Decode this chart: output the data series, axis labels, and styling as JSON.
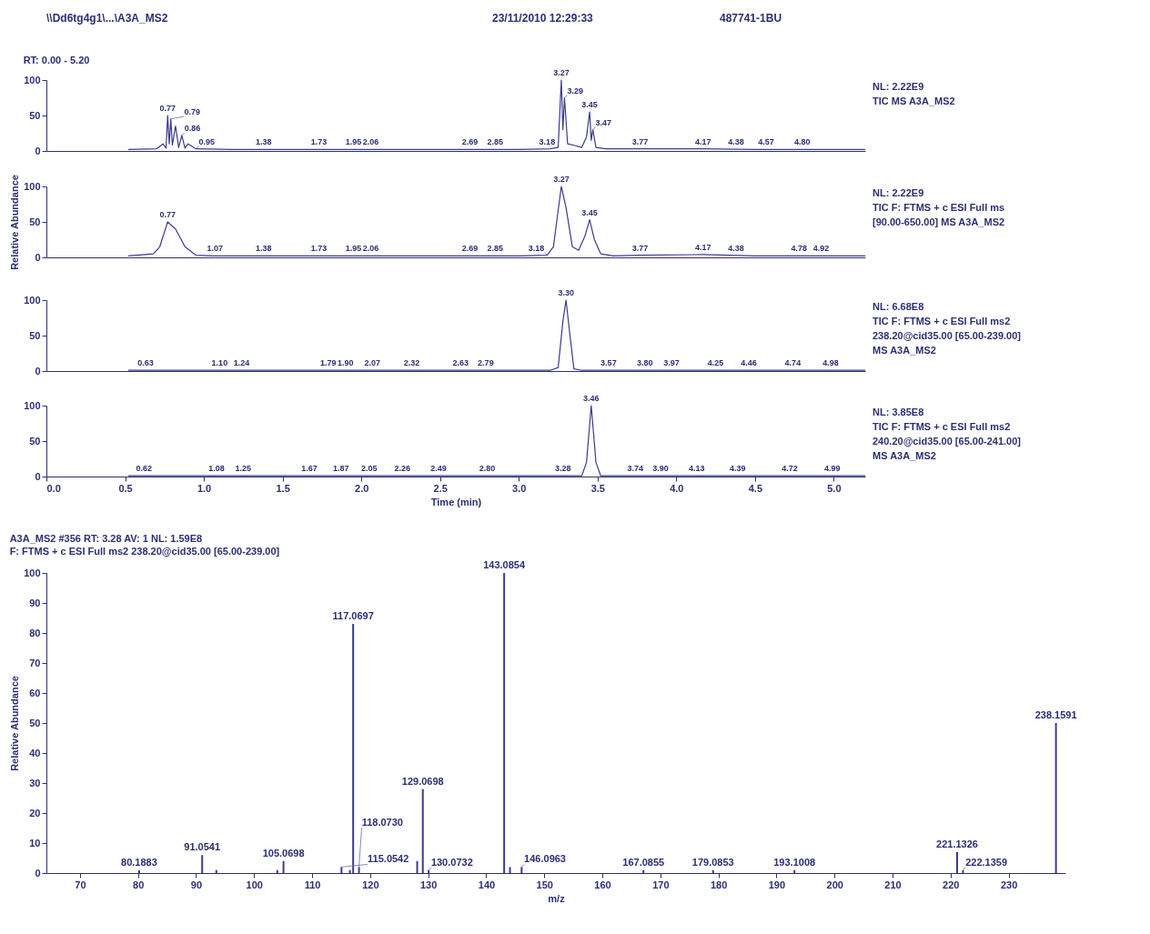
{
  "chart_data": [
    {
      "type": "other",
      "annotations": [
        "\\\\Dd6tg4g1\\...\\A3A_MS2",
        "23/11/2010 12:29:33",
        "487741-1BU"
      ]
    },
    {
      "type": "line",
      "title": "RT: 0.00 - 5.20",
      "color": "#3b3b8f",
      "xlim": [
        0,
        5.2
      ],
      "ylim": [
        0,
        100
      ],
      "yticks": [
        0,
        50,
        100
      ],
      "tick_labels": "y",
      "x": [
        0.52,
        0.7,
        0.74,
        0.76,
        0.77,
        0.78,
        0.79,
        0.8,
        0.82,
        0.84,
        0.86,
        0.88,
        0.9,
        0.95,
        1.2,
        1.5,
        2.0,
        2.5,
        3.0,
        3.2,
        3.25,
        3.27,
        3.28,
        3.29,
        3.31,
        3.35,
        3.4,
        3.43,
        3.45,
        3.46,
        3.47,
        3.49,
        3.55,
        3.77,
        4.17,
        4.5,
        5.2
      ],
      "values": [
        2,
        3,
        10,
        4,
        50,
        10,
        45,
        8,
        35,
        5,
        22,
        4,
        10,
        3,
        2,
        2,
        2,
        2,
        2,
        3,
        5,
        100,
        30,
        75,
        10,
        8,
        5,
        20,
        55,
        15,
        30,
        5,
        3,
        3,
        3,
        2,
        2
      ],
      "annotations": [
        "NL: 2.22E9",
        "TIC  MS A3A_MS2",
        {
          "text": "0.77",
          "x": 0.77,
          "y": 50
        },
        {
          "text": "0.79",
          "x": 0.79,
          "y": 45
        },
        {
          "text": "0.86",
          "x": 0.86,
          "y": 22
        },
        {
          "text": "0.95",
          "x": 0.95,
          "y": 3
        },
        {
          "text": "1.38",
          "x": 1.38,
          "y": 2
        },
        {
          "text": "1.73",
          "x": 1.73,
          "y": 2
        },
        {
          "text": "1.95",
          "x": 1.95,
          "y": 2
        },
        {
          "text": "2.06",
          "x": 2.06,
          "y": 2
        },
        {
          "text": "2.69",
          "x": 2.69,
          "y": 2
        },
        {
          "text": "2.85",
          "x": 2.85,
          "y": 2
        },
        {
          "text": "3.18",
          "x": 3.18,
          "y": 3
        },
        {
          "text": "3.27",
          "x": 3.27,
          "y": 100
        },
        {
          "text": "3.29",
          "x": 3.29,
          "y": 75
        },
        {
          "text": "3.45",
          "x": 3.45,
          "y": 55
        },
        {
          "text": "3.47",
          "x": 3.47,
          "y": 30
        },
        {
          "text": "3.77",
          "x": 3.77,
          "y": 3
        },
        {
          "text": "4.17",
          "x": 4.17,
          "y": 3
        },
        {
          "text": "4.38",
          "x": 4.38,
          "y": 2
        },
        {
          "text": "4.57",
          "x": 4.57,
          "y": 2
        },
        {
          "text": "4.80",
          "x": 4.8,
          "y": 2
        }
      ]
    },
    {
      "type": "line",
      "ylabel": "Relative Abundance",
      "color": "#3b3b8f",
      "xlim": [
        0,
        5.2
      ],
      "ylim": [
        0,
        100
      ],
      "yticks": [
        0,
        50,
        100
      ],
      "tick_labels": "y",
      "x": [
        0.52,
        0.68,
        0.72,
        0.77,
        0.82,
        0.88,
        0.95,
        1.05,
        2.0,
        3.0,
        3.18,
        3.22,
        3.27,
        3.3,
        3.34,
        3.38,
        3.42,
        3.45,
        3.48,
        3.52,
        3.6,
        3.77,
        4.17,
        4.5,
        5.2
      ],
      "values": [
        2,
        5,
        15,
        50,
        40,
        15,
        3,
        2,
        2,
        2,
        3,
        15,
        100,
        70,
        15,
        10,
        30,
        53,
        25,
        5,
        2,
        3,
        4,
        2,
        2
      ],
      "annotations": [
        "NL: 2.22E9",
        "TIC F: FTMS + c ESI Full ms",
        "[90.00-650.00]  MS A3A_MS2",
        {
          "text": "0.77",
          "x": 0.77,
          "y": 50
        },
        {
          "text": "1.07",
          "x": 1.07,
          "y": 2
        },
        {
          "text": "1.38",
          "x": 1.38,
          "y": 2
        },
        {
          "text": "1.73",
          "x": 1.73,
          "y": 2
        },
        {
          "text": "1.95",
          "x": 1.95,
          "y": 2
        },
        {
          "text": "2.06",
          "x": 2.06,
          "y": 2
        },
        {
          "text": "2.69",
          "x": 2.69,
          "y": 2
        },
        {
          "text": "2.85",
          "x": 2.85,
          "y": 2
        },
        {
          "text": "3.18",
          "x": 3.18,
          "y": 3
        },
        {
          "text": "3.27",
          "x": 3.27,
          "y": 100
        },
        {
          "text": "3.45",
          "x": 3.45,
          "y": 53
        },
        {
          "text": "3.77",
          "x": 3.77,
          "y": 3
        },
        {
          "text": "4.17",
          "x": 4.17,
          "y": 4
        },
        {
          "text": "4.38",
          "x": 4.38,
          "y": 2
        },
        {
          "text": "4.78",
          "x": 4.78,
          "y": 2
        },
        {
          "text": "4.92",
          "x": 4.92,
          "y": 2
        }
      ]
    },
    {
      "type": "line",
      "color": "#3b3b8f",
      "xlim": [
        0,
        5.2
      ],
      "ylim": [
        0,
        100
      ],
      "yticks": [
        0,
        50,
        100
      ],
      "tick_labels": "y",
      "x": [
        0.52,
        3.2,
        3.25,
        3.28,
        3.3,
        3.32,
        3.35,
        3.4,
        5.2
      ],
      "values": [
        1,
        1,
        5,
        70,
        100,
        60,
        3,
        1,
        1
      ],
      "annotations": [
        "NL: 6.68E8",
        "TIC F: FTMS + c ESI Full ms2",
        "238.20@cid35.00 [65.00-239.00]",
        " MS A3A_MS2",
        {
          "text": "0.63",
          "x": 0.63,
          "y": 1
        },
        {
          "text": "1.10",
          "x": 1.1,
          "y": 1
        },
        {
          "text": "1.24",
          "x": 1.24,
          "y": 1
        },
        {
          "text": "1.79",
          "x": 1.79,
          "y": 1
        },
        {
          "text": "1.90",
          "x": 1.9,
          "y": 1
        },
        {
          "text": "2.07",
          "x": 2.07,
          "y": 1
        },
        {
          "text": "2.32",
          "x": 2.32,
          "y": 1
        },
        {
          "text": "2.63",
          "x": 2.63,
          "y": 1
        },
        {
          "text": "2.79",
          "x": 2.79,
          "y": 1
        },
        {
          "text": "3.30",
          "x": 3.3,
          "y": 100
        },
        {
          "text": "3.57",
          "x": 3.57,
          "y": 1
        },
        {
          "text": "3.80",
          "x": 3.8,
          "y": 1
        },
        {
          "text": "3.97",
          "x": 3.97,
          "y": 1
        },
        {
          "text": "4.25",
          "x": 4.25,
          "y": 1
        },
        {
          "text": "4.46",
          "x": 4.46,
          "y": 1
        },
        {
          "text": "4.74",
          "x": 4.74,
          "y": 1
        },
        {
          "text": "4.98",
          "x": 4.98,
          "y": 1
        }
      ]
    },
    {
      "type": "line",
      "xlabel": "Time (min)",
      "color": "#3b3b8f",
      "xlim": [
        0,
        5.2
      ],
      "ylim": [
        0,
        100
      ],
      "yticks": [
        0,
        50,
        100
      ],
      "xticks": [
        {
          "value": 0,
          "label": "0.0"
        },
        0.5,
        {
          "value": 1,
          "label": "1.0"
        },
        1.5,
        {
          "value": 2,
          "label": "2.0"
        },
        2.5,
        {
          "value": 3,
          "label": "3.0"
        },
        3.5,
        {
          "value": 4,
          "label": "4.0"
        },
        4.5,
        {
          "value": 5,
          "label": "5.0"
        }
      ],
      "x": [
        0.52,
        3.4,
        3.43,
        3.46,
        3.49,
        3.52,
        5.2
      ],
      "values": [
        1,
        1,
        20,
        100,
        20,
        1,
        1
      ],
      "annotations": [
        "NL: 3.85E8",
        "TIC F: FTMS + c ESI Full ms2",
        "240.20@cid35.00 [65.00-241.00]",
        " MS A3A_MS2",
        {
          "text": "0.62",
          "x": 0.62,
          "y": 1
        },
        {
          "text": "1.08",
          "x": 1.08,
          "y": 1
        },
        {
          "text": "1.25",
          "x": 1.25,
          "y": 1
        },
        {
          "text": "1.67",
          "x": 1.67,
          "y": 1
        },
        {
          "text": "1.87",
          "x": 1.87,
          "y": 1
        },
        {
          "text": "2.05",
          "x": 2.05,
          "y": 1
        },
        {
          "text": "2.26",
          "x": 2.26,
          "y": 1
        },
        {
          "text": "2.49",
          "x": 2.49,
          "y": 1
        },
        {
          "text": "2.80",
          "x": 2.8,
          "y": 1
        },
        {
          "text": "3.28",
          "x": 3.28,
          "y": 1
        },
        {
          "text": "3.46",
          "x": 3.46,
          "y": 100
        },
        {
          "text": "3.74",
          "x": 3.74,
          "y": 1
        },
        {
          "text": "3.90",
          "x": 3.9,
          "y": 1
        },
        {
          "text": "4.13",
          "x": 4.13,
          "y": 1
        },
        {
          "text": "4.39",
          "x": 4.39,
          "y": 1
        },
        {
          "text": "4.72",
          "x": 4.72,
          "y": 1
        },
        {
          "text": "4.99",
          "x": 4.99,
          "y": 1
        }
      ]
    },
    {
      "type": "bar",
      "title": "A3A_MS2 #356   RT: 3.28   AV: 1   NL: 1.59E8",
      "subtitle": "F: FTMS + c ESI Full ms2 238.20@cid35.00 [65.00-239.00]",
      "xlabel": "m/z",
      "ylabel": "Relative Abundance",
      "color": "#3b3b8f",
      "xlim": [
        65,
        239
      ],
      "xticks": [
        70,
        80,
        90,
        100,
        110,
        120,
        130,
        140,
        150,
        160,
        170,
        180,
        190,
        200,
        210,
        220,
        230
      ],
      "ylim": [
        0,
        100
      ],
      "yticks": [
        0,
        10,
        20,
        30,
        40,
        50,
        60,
        70,
        80,
        90,
        100
      ],
      "x": [
        80.1883,
        91.0541,
        93.5,
        104.0,
        105.0698,
        115.0542,
        116.5,
        117.0697,
        118.073,
        128.1,
        129.0698,
        130.0732,
        143.0854,
        144.09,
        146.0963,
        167.0855,
        179.0853,
        193.1008,
        221.1326,
        222.1359,
        238.1591
      ],
      "values": [
        1,
        6,
        1,
        1,
        4,
        2,
        1,
        83,
        2,
        4,
        28,
        1,
        100,
        2,
        2,
        1,
        1,
        1,
        7,
        1,
        50
      ],
      "annotations": [
        {
          "text": "80.1883",
          "x": 80.1883,
          "y": 1
        },
        {
          "text": "91.0541",
          "x": 91.0541,
          "y": 6
        },
        {
          "text": "105.0698",
          "x": 105.0698,
          "y": 4
        },
        {
          "text": "115.0542",
          "x": 115.0542,
          "y": 2
        },
        {
          "text": "117.0697",
          "x": 117.0697,
          "y": 83
        },
        {
          "text": "118.0730",
          "x": 118.073,
          "y": 2
        },
        {
          "text": "129.0698",
          "x": 129.0698,
          "y": 28
        },
        {
          "text": "130.0732",
          "x": 130.0732,
          "y": 1
        },
        {
          "text": "143.0854",
          "x": 143.0854,
          "y": 100
        },
        {
          "text": "146.0963",
          "x": 146.0963,
          "y": 2
        },
        {
          "text": "167.0855",
          "x": 167.0855,
          "y": 1
        },
        {
          "text": "179.0853",
          "x": 179.0853,
          "y": 1
        },
        {
          "text": "193.1008",
          "x": 193.1008,
          "y": 1
        },
        {
          "text": "221.1326",
          "x": 221.1326,
          "y": 7
        },
        {
          "text": "222.1359",
          "x": 222.1359,
          "y": 1
        },
        {
          "text": "238.1591",
          "x": 238.1591,
          "y": 50
        }
      ]
    }
  ]
}
